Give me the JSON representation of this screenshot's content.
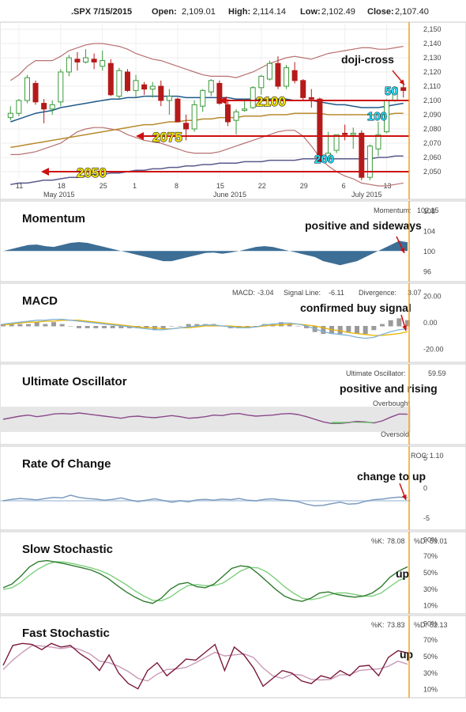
{
  "header": {
    "symbol": ".SPX 7/15/2015",
    "open_label": "Open:",
    "open": "2,109.01",
    "high_label": "High:",
    "high": "2,114.14",
    "low_label": "Low:",
    "low": "2,102.49",
    "close_label": "Close:",
    "close": "2,107.40"
  },
  "colors": {
    "up": "#3a9a3a",
    "down": "#b51a1a",
    "ma50": "#1f5a8c",
    "ma100": "#b88b2e",
    "ma200": "#5a5a8a",
    "bb": "#b87070",
    "momentum": "#3d6e95",
    "rsi": "#8a4a8a",
    "green": "#5fbf5f",
    "arrow": "#cc1111",
    "cursor": "#f0a020"
  },
  "chart_data": [
    {
      "type": "candlestick",
      "panel": "price",
      "ylim": [
        2045,
        2155
      ],
      "yticks": [
        "2,150",
        "2,140",
        "2,130",
        "2,120",
        "2,110",
        "2,100",
        "2,090",
        "2,080",
        "2,070",
        "2,060",
        "2,050"
      ],
      "ytick_values": [
        2150,
        2140,
        2130,
        2120,
        2110,
        2100,
        2090,
        2080,
        2070,
        2060,
        2050
      ],
      "xticks": [
        "11",
        "18",
        "25",
        "1",
        "8",
        "15",
        "22",
        "29",
        "6",
        "13"
      ],
      "xsublabels": [
        "May 2015",
        "June 2015",
        "July 2015"
      ],
      "ohlc": [
        [
          2088,
          2096,
          2086,
          2091
        ],
        [
          2091,
          2101,
          2089,
          2100
        ],
        [
          2100,
          2118,
          2098,
          2116
        ],
        [
          2112,
          2114,
          2097,
          2099
        ],
        [
          2098,
          2101,
          2084,
          2094
        ],
        [
          2094,
          2100,
          2090,
          2097
        ],
        [
          2099,
          2122,
          2096,
          2120
        ],
        [
          2120,
          2132,
          2117,
          2130
        ],
        [
          2129,
          2134,
          2121,
          2127
        ],
        [
          2127,
          2136,
          2126,
          2130
        ],
        [
          2129,
          2133,
          2122,
          2127
        ],
        [
          2124,
          2135,
          2121,
          2128
        ],
        [
          2126,
          2129,
          2103,
          2104
        ],
        [
          2103,
          2123,
          2101,
          2121
        ],
        [
          2120,
          2122,
          2106,
          2107
        ],
        [
          2107,
          2118,
          2102,
          2114
        ],
        [
          2111,
          2113,
          2104,
          2108
        ],
        [
          2108,
          2113,
          2102,
          2110
        ],
        [
          2110,
          2114,
          2096,
          2100
        ],
        [
          2100,
          2108,
          2090,
          2103
        ],
        [
          2101,
          2102,
          2085,
          2085
        ],
        [
          2084,
          2090,
          2072,
          2080
        ],
        [
          2080,
          2100,
          2078,
          2097
        ],
        [
          2096,
          2108,
          2092,
          2107
        ],
        [
          2106,
          2115,
          2103,
          2114
        ],
        [
          2112,
          2114,
          2097,
          2098
        ],
        [
          2097,
          2101,
          2082,
          2085
        ],
        [
          2086,
          2094,
          2076,
          2092
        ],
        [
          2093,
          2101,
          2092,
          2094
        ],
        [
          2095,
          2110,
          2094,
          2109
        ],
        [
          2109,
          2118,
          2104,
          2117
        ],
        [
          2115,
          2128,
          2114,
          2126
        ],
        [
          2126,
          2131,
          2108,
          2110
        ],
        [
          2110,
          2125,
          2108,
          2123
        ],
        [
          2121,
          2127,
          2112,
          2114
        ],
        [
          2114,
          2115,
          2100,
          2102
        ],
        [
          2102,
          2108,
          2095,
          2101
        ],
        [
          2101,
          2102,
          2056,
          2057
        ],
        [
          2060,
          2078,
          2057,
          2063
        ],
        [
          2065,
          2076,
          2063,
          2076
        ],
        [
          2077,
          2083,
          2072,
          2076
        ],
        [
          2076,
          2081,
          2066,
          2077
        ],
        [
          2077,
          2079,
          2044,
          2046
        ],
        [
          2046,
          2069,
          2044,
          2068
        ],
        [
          2066,
          2085,
          2061,
          2076
        ],
        [
          2078,
          2101,
          2077,
          2100
        ],
        [
          2100,
          2110,
          2099,
          2109
        ],
        [
          2109,
          2114,
          2102,
          2107
        ]
      ],
      "ma50": [
        2085,
        2087,
        2089,
        2091,
        2092,
        2093,
        2095,
        2096,
        2097,
        2098,
        2099,
        2100,
        2101,
        2101,
        2102,
        2102,
        2103,
        2103,
        2103,
        2103,
        2103,
        2102,
        2102,
        2102,
        2102,
        2102,
        2102,
        2101,
        2101,
        2101,
        2101,
        2101,
        2101,
        2101,
        2100,
        2100,
        2100,
        2099,
        2098,
        2097,
        2097,
        2096,
        2095,
        2095,
        2095,
        2096,
        2097,
        2098
      ],
      "ma100": [
        2067,
        2068,
        2069,
        2070,
        2071,
        2072,
        2073,
        2074,
        2075,
        2076,
        2077,
        2078,
        2079,
        2080,
        2081,
        2082,
        2083,
        2083,
        2084,
        2085,
        2085,
        2086,
        2086,
        2087,
        2087,
        2088,
        2088,
        2088,
        2089,
        2089,
        2089,
        2090,
        2090,
        2090,
        2091,
        2091,
        2091,
        2091,
        2090,
        2090,
        2090,
        2090,
        2090,
        2090,
        2090,
        2090,
        2091,
        2091
      ],
      "ma200": [
        2041,
        2042,
        2042,
        2043,
        2044,
        2044,
        2045,
        2046,
        2046,
        2047,
        2048,
        2048,
        2049,
        2049,
        2050,
        2051,
        2051,
        2052,
        2052,
        2053,
        2053,
        2054,
        2054,
        2055,
        2055,
        2056,
        2056,
        2056,
        2057,
        2057,
        2057,
        2058,
        2058,
        2058,
        2058,
        2059,
        2059,
        2059,
        2059,
        2059,
        2059,
        2059,
        2059,
        2059,
        2060,
        2060,
        2061,
        2061
      ],
      "bb_upper": [
        2114,
        2118,
        2124,
        2128,
        2128,
        2128,
        2131,
        2135,
        2137,
        2139,
        2140,
        2140,
        2139,
        2138,
        2136,
        2133,
        2131,
        2129,
        2128,
        2126,
        2124,
        2122,
        2120,
        2118,
        2117,
        2117,
        2117,
        2116,
        2118,
        2120,
        2123,
        2126,
        2128,
        2130,
        2131,
        2130,
        2129,
        2131,
        2133,
        2134,
        2135,
        2136,
        2137,
        2137,
        2136,
        2136,
        2137,
        2138
      ],
      "bb_lower": [
        2062,
        2062,
        2063,
        2064,
        2066,
        2068,
        2070,
        2074,
        2078,
        2080,
        2081,
        2081,
        2080,
        2079,
        2076,
        2074,
        2072,
        2071,
        2070,
        2068,
        2066,
        2064,
        2063,
        2063,
        2063,
        2064,
        2066,
        2068,
        2070,
        2072,
        2074,
        2076,
        2078,
        2079,
        2079,
        2075,
        2068,
        2060,
        2054,
        2050,
        2047,
        2045,
        2042,
        2041,
        2040,
        2040,
        2041,
        2042
      ],
      "annotations": [
        "doji-cross",
        "2100",
        "2075",
        "2050",
        "50",
        "100",
        "200"
      ],
      "support_levels": [
        2100,
        2075,
        2050
      ]
    },
    {
      "type": "area",
      "panel": "momentum",
      "title": "Momentum",
      "value_label": "Momentum:",
      "value": "102.15",
      "ylim": [
        94,
        110
      ],
      "yticks": [
        "108",
        "104",
        "100",
        "96"
      ],
      "ytick_values": [
        108,
        104,
        100,
        96
      ],
      "baseline": 100,
      "values": [
        100,
        100.5,
        101,
        101.5,
        101.6,
        101.2,
        101,
        101.5,
        102,
        102.2,
        102,
        101.5,
        101,
        100.5,
        100,
        99.5,
        99,
        98.5,
        98,
        97.5,
        97.5,
        98,
        98.5,
        99,
        99.5,
        99.6,
        99.3,
        99.6,
        100,
        100.5,
        101,
        101.2,
        101,
        100.5,
        100,
        99.5,
        99,
        98.5,
        97.5,
        97,
        96.5,
        97,
        97.5,
        98.5,
        99.5,
        100.5,
        101.5,
        102.5,
        102.15
      ],
      "annotation": "positive and sideways"
    },
    {
      "type": "line",
      "panel": "macd",
      "title": "MACD",
      "macd_label": "MACD:",
      "macd_value": "-3.04",
      "signal_label": "Signal Line:",
      "signal_value": "-6.11",
      "divergence_label": "Divergence:",
      "divergence_value": "3.07",
      "ylim": [
        -30,
        30
      ],
      "yticks": [
        "20.00",
        "0.00",
        "-20.00"
      ],
      "ytick_values": [
        20,
        0,
        -20
      ],
      "macd": [
        2,
        3,
        4,
        5,
        6,
        6,
        7,
        7,
        6,
        5,
        4,
        3,
        2,
        1,
        0,
        -1,
        -2,
        -3,
        -4,
        -4,
        -3,
        -2,
        -1,
        0,
        1,
        1,
        0,
        -1,
        -2,
        -2,
        -1,
        1,
        2,
        3,
        3,
        2,
        0,
        -3,
        -6,
        -8,
        -9,
        -10,
        -12,
        -13,
        -12,
        -9,
        -6,
        -4,
        -3.04
      ],
      "signal": [
        1,
        2,
        3,
        4,
        4,
        5,
        5,
        6,
        6,
        6,
        5,
        4,
        3,
        2,
        1,
        0,
        -1,
        -2,
        -2,
        -3,
        -3,
        -2,
        -2,
        -1,
        0,
        0,
        0,
        0,
        -1,
        -1,
        -1,
        0,
        1,
        1,
        2,
        2,
        1,
        0,
        -2,
        -4,
        -5,
        -7,
        -8,
        -9,
        -10,
        -10,
        -9,
        -8,
        -6.11
      ],
      "annotation": "confirmed buy signal"
    },
    {
      "type": "line",
      "panel": "ultimate_oscillator",
      "title": "Ultimate Oscillator",
      "value_label": "Ultimate Oscillator:",
      "value": "59.59",
      "overbought_label": "Overbought",
      "oversold_label": "Oversold",
      "ylim": [
        20,
        80
      ],
      "values": [
        50,
        53,
        56,
        58,
        55,
        57,
        60,
        61,
        60,
        62,
        60,
        58,
        56,
        54,
        52,
        55,
        56,
        54,
        53,
        55,
        57,
        55,
        52,
        53,
        55,
        58,
        57,
        60,
        61,
        58,
        56,
        57,
        58,
        60,
        61,
        59,
        55,
        50,
        45,
        42,
        42,
        44,
        46,
        45,
        43,
        47,
        54,
        60,
        59.59
      ],
      "annotation": "positive and rising"
    },
    {
      "type": "line",
      "panel": "rate_of_change",
      "title": "Rate Of Change",
      "value_label": "ROC:",
      "value": "1.10",
      "ylim": [
        -7,
        7
      ],
      "yticks": [
        "5",
        "0",
        "-5"
      ],
      "ytick_values": [
        5,
        0,
        -5
      ],
      "values": [
        0,
        0.5,
        0.8,
        0.6,
        0.3,
        0.8,
        1.2,
        1.0,
        2.0,
        1.2,
        0.8,
        0.6,
        0.2,
        0.5,
        1.0,
        0.3,
        -0.3,
        0.2,
        0.7,
        0.1,
        -0.5,
        0,
        -0.4,
        0.3,
        0.5,
        0.2,
        0.6,
        0.4,
        0.8,
        0.2,
        0,
        0.5,
        0.7,
        0.3,
        0.1,
        -0.3,
        -1.2,
        -1.8,
        -1.6,
        -1.0,
        -0.5,
        -1.2,
        -1.0,
        -0.2,
        0.4,
        0.6,
        1.0,
        1.3,
        1.1
      ],
      "annotation": "change to up"
    },
    {
      "type": "line",
      "panel": "slow_stochastic",
      "title": "Slow Stochastic",
      "k_label": "%K:",
      "k_value": "78.08",
      "d_label": "%D:",
      "d_value": "59.01",
      "ylim": [
        0,
        100
      ],
      "yticks": [
        "90%",
        "70%",
        "50%",
        "30%",
        "10%"
      ],
      "ytick_values": [
        90,
        70,
        50,
        30,
        10
      ],
      "k": [
        38,
        45,
        60,
        78,
        88,
        90,
        87,
        84,
        80,
        76,
        72,
        65,
        55,
        42,
        30,
        20,
        12,
        8,
        18,
        35,
        45,
        48,
        40,
        38,
        45,
        60,
        75,
        80,
        78,
        65,
        50,
        35,
        22,
        15,
        12,
        18,
        28,
        30,
        25,
        22,
        20,
        22,
        28,
        40,
        58,
        70,
        78.08
      ],
      "d": [
        35,
        38,
        48,
        62,
        74,
        83,
        88,
        87,
        84,
        80,
        76,
        71,
        64,
        54,
        44,
        32,
        22,
        14,
        13,
        20,
        32,
        42,
        44,
        42,
        42,
        47,
        58,
        70,
        77,
        76,
        68,
        55,
        40,
        28,
        18,
        15,
        18,
        24,
        28,
        28,
        25,
        22,
        22,
        28,
        40,
        52,
        59.01
      ],
      "annotation": "up"
    },
    {
      "type": "line",
      "panel": "fast_stochastic",
      "title": "Fast Stochastic",
      "k_label": "%K:",
      "k_value": "73.83",
      "d_label": "%D:",
      "d_value": "52.13",
      "ylim": [
        0,
        100
      ],
      "yticks": [
        "90%",
        "70%",
        "50%",
        "30%",
        "10%"
      ],
      "ytick_values": [
        90,
        70,
        50,
        30,
        10
      ],
      "k": [
        50,
        88,
        92,
        90,
        80,
        92,
        85,
        88,
        72,
        60,
        40,
        70,
        35,
        15,
        5,
        40,
        55,
        30,
        45,
        62,
        60,
        75,
        90,
        40,
        85,
        70,
        45,
        10,
        25,
        40,
        35,
        20,
        15,
        30,
        25,
        40,
        30,
        48,
        50,
        30,
        65,
        78,
        73.83
      ],
      "d": [
        42,
        60,
        75,
        88,
        87,
        85,
        82,
        85,
        80,
        72,
        58,
        55,
        48,
        38,
        25,
        20,
        33,
        42,
        43,
        46,
        55,
        65,
        75,
        68,
        70,
        72,
        65,
        45,
        30,
        25,
        33,
        31,
        23,
        22,
        23,
        32,
        32,
        40,
        42,
        43,
        48,
        58,
        52.13
      ],
      "annotation": "up"
    }
  ]
}
